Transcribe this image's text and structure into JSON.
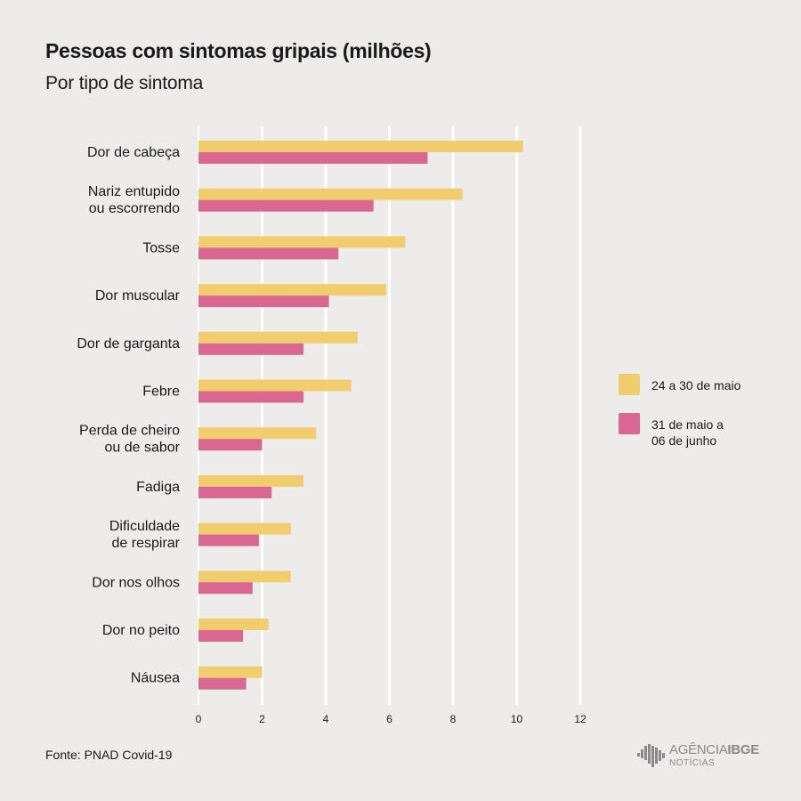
{
  "header": {
    "title": "Pessoas com sintomas gripais (milhões)",
    "subtitle": "Por tipo de sintoma"
  },
  "legend": {
    "items": [
      {
        "label": "24 a 30 de maio",
        "color": "#f2cd6e"
      },
      {
        "label": "31 de maio a\n06 de junho",
        "color": "#d96791"
      }
    ]
  },
  "footer": {
    "source": "Fonte: PNAD Covid-19",
    "logo_brand_1": "AGÊNCIA",
    "logo_brand_2": "IBGE",
    "logo_sub": "NOTÍCIAS"
  },
  "chart_data": {
    "type": "bar",
    "orientation": "horizontal",
    "title": "Pessoas com sintomas gripais (milhões)",
    "subtitle": "Por tipo de sintoma",
    "categories": [
      "Dor de cabeça",
      "Nariz entupido\nou escorrendo",
      "Tosse",
      "Dor muscular",
      "Dor de garganta",
      "Febre",
      "Perda de cheiro\nou de sabor",
      "Fadiga",
      "Dificuldade\nde respirar",
      "Dor nos olhos",
      "Dor no peito",
      "Náusea"
    ],
    "series": [
      {
        "name": "24 a 30 de maio",
        "color": "#f2cd6e",
        "values": [
          10.2,
          8.3,
          6.5,
          5.9,
          5.0,
          4.8,
          3.7,
          3.3,
          2.9,
          2.9,
          2.2,
          2.0
        ]
      },
      {
        "name": "31 de maio a 06 de junho",
        "color": "#d96791",
        "values": [
          7.2,
          5.5,
          4.4,
          4.1,
          3.3,
          3.3,
          2.0,
          2.3,
          1.9,
          1.7,
          1.4,
          1.5
        ]
      }
    ],
    "xlim": [
      0,
      12
    ],
    "xticks": [
      0,
      2,
      4,
      6,
      8,
      10,
      12
    ],
    "grid": "vertical",
    "legend_position": "right"
  }
}
